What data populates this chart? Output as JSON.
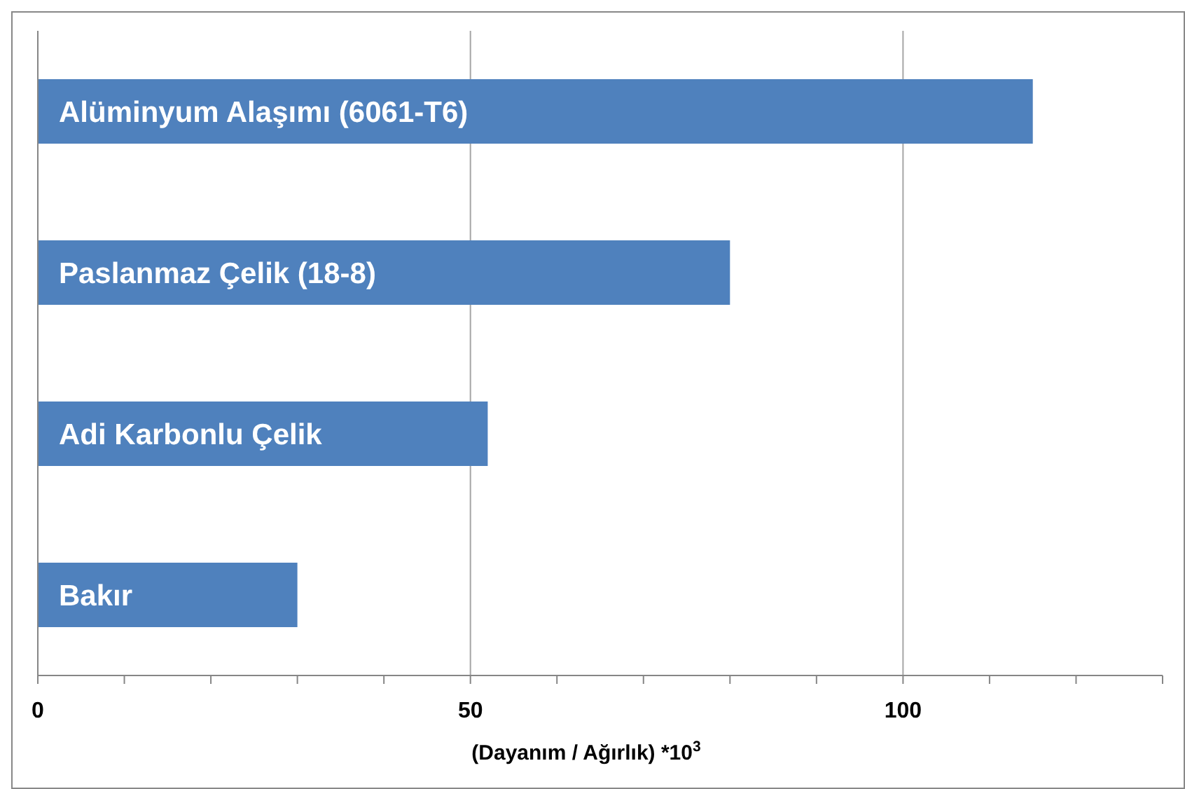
{
  "chart_data": {
    "type": "bar",
    "orientation": "horizontal",
    "categories": [
      "Alüminyum Alaşımı (6061-T6)",
      "Paslanmaz Çelik (18-8)",
      "Adi Karbonlu Çelik",
      "Bakır"
    ],
    "values": [
      115,
      80,
      52,
      30
    ],
    "color": "#4f81bd",
    "xlabel": "(Dayanım / Ağırlık) *10$^{3}$",
    "xlim": [
      0,
      130
    ],
    "xticks": [
      0,
      {
        "value": 10,
        "label": null
      },
      {
        "value": 20,
        "label": null
      },
      {
        "value": 30,
        "label": null
      },
      {
        "value": 40,
        "label": null
      },
      50,
      {
        "value": 60,
        "label": null
      },
      {
        "value": 70,
        "label": null
      },
      {
        "value": 80,
        "label": null
      },
      {
        "value": 90,
        "label": null
      },
      100,
      {
        "value": 110,
        "label": null
      },
      {
        "value": 120,
        "label": null
      },
      {
        "value": 130,
        "label": null
      }
    ],
    "grid": "x"
  }
}
